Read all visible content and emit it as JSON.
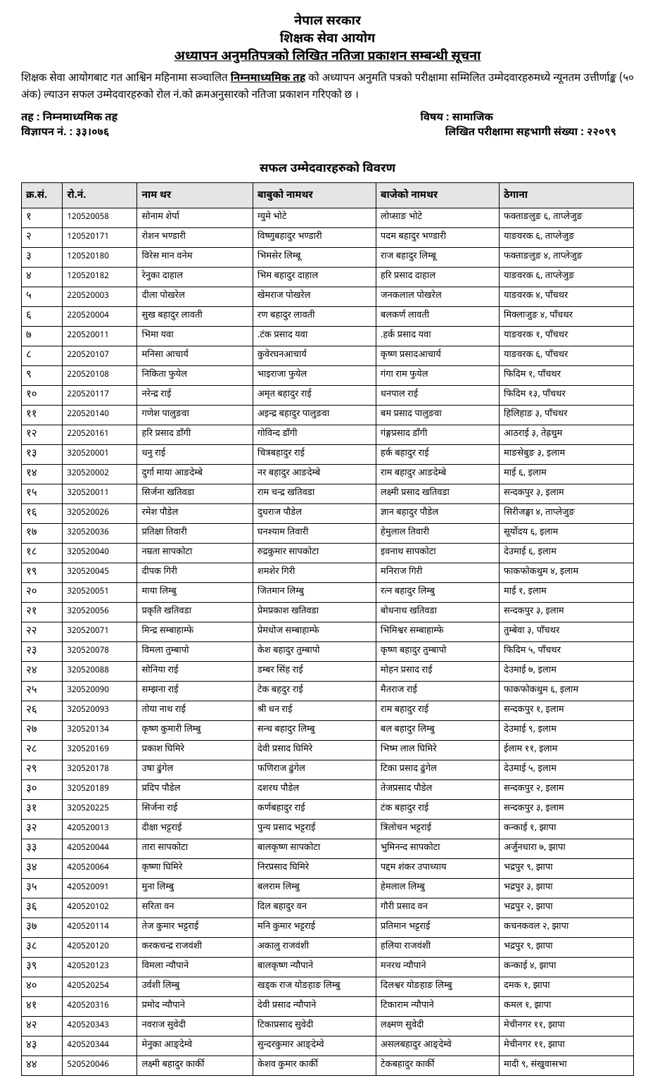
{
  "header": {
    "line1": "नेपाल सरकार",
    "line2": "शिक्षक सेवा आयोग",
    "line3": "अध्यापन अनुमतिपत्रको लिखित नतिजा प्रकाशन सम्बन्धी सूचना"
  },
  "intro": {
    "part1": "शिक्षक सेवा आयोगबाट गत आश्विन महिनामा सञ्चालित ",
    "bold_underline": "निम्नमाध्यमिक तह",
    "part2": " को अध्यापन अनुमति पत्रको परीक्षामा सम्मिलित उम्मेदवारहरुमध्ये न्यूनतम उत्तीर्णाङ्क (५० अंक) ल्याउन सफल उम्मेदवारहरुको रोल नं.को क्रमअनुसारको नतिजा प्रकाशन गरिएको छ ।"
  },
  "info": {
    "level_label": "तह :",
    "level_value": "निम्नमाध्यमिक तह",
    "subject_label": "विषय :",
    "subject_value": "सामाजिक",
    "ad_label": "विज्ञापन नं. :",
    "ad_value": "३३।०७६",
    "participants_label": "लिखित परीक्षामा सहभागी संख्या :",
    "participants_value": "२२०९९"
  },
  "table_title": "सफल उम्मेदवारहरुको विवरण",
  "columns": [
    "क्र.सं.",
    "रो.नं.",
    "नाम थर",
    "बाबुको नामथर",
    "बाजेको नामथर",
    "ठेगाना"
  ],
  "rows": [
    {
      "sn": "१",
      "roll": "120520058",
      "name": "सोनाम शेर्पा",
      "father": "ग्युमे भोटे",
      "gfather": "लोप्साङ भोटे",
      "addr": "फक्ताङलुङ ६, ताप्लेजुङ"
    },
    {
      "sn": "२",
      "roll": "120520171",
      "name": "रोशन भण्डारी",
      "father": "विष्णुबहादुर भण्डारी",
      "gfather": "पदम बहादुर भण्डारी",
      "addr": "याङवरक ६, ताप्लेजुङ"
    },
    {
      "sn": "३",
      "roll": "120520180",
      "name": "विरेस मान वनेम",
      "father": "भिमसेर लिम्बू",
      "gfather": "राज बहादुर लिम्बू",
      "addr": "फक्ताङलुङ ४, ताप्लेजुङ"
    },
    {
      "sn": "४",
      "roll": "120520182",
      "name": "रेनुका दाहाल",
      "father": "भिम बहादुर दाहाल",
      "gfather": "हरि प्रसाद दाहाल",
      "addr": "याङवरक ६, ताप्लेजुङ"
    },
    {
      "sn": "५",
      "roll": "220520003",
      "name": "दीला पोखरेल",
      "father": "खेमराज पोखरेल",
      "gfather": "जनकलाल पोखरेल",
      "addr": "याङवरक ४, पाँचथर"
    },
    {
      "sn": "६",
      "roll": "220520004",
      "name": "सुख बहादुर लावती",
      "father": "रण बहादुर लावती",
      "gfather": "बलकर्ण लावती",
      "addr": "मिक्लाजुङ ४, पाँचथर"
    },
    {
      "sn": "७",
      "roll": "220520011",
      "name": "भिमा यवा",
      "father": ".टंक प्रसाद यवा",
      "gfather": ".हर्क प्रसाद यवा",
      "addr": "याङवरक १, पाँचथर"
    },
    {
      "sn": "८",
      "roll": "220520107",
      "name": "मनिसा आचार्य",
      "father": "कुवेरघनआचार्य",
      "gfather": "कृष्ण प्रसादआचार्य",
      "addr": "याङवरक ६, पाँचथर"
    },
    {
      "sn": "९",
      "roll": "220520108",
      "name": "निकिता फुयेल",
      "father": "भाइराजा फुयेल",
      "gfather": "गंगा राम फुयेल",
      "addr": "फिदिम १, पाँचथर"
    },
    {
      "sn": "१०",
      "roll": "220520117",
      "name": "नरेन्द्र राई",
      "father": "अमृत बहादुर राई",
      "gfather": "धनपाल राई",
      "addr": "फिदिम १३, पाँचथर"
    },
    {
      "sn": "११",
      "roll": "220520140",
      "name": "गणेश पालुङवा",
      "father": "अइन्द्र बहादुर पालुङवा",
      "gfather": "बम प्रसाद पालुङवा",
      "addr": "हिलिहाङ ३, पाँचथर"
    },
    {
      "sn": "१२",
      "roll": "220520161",
      "name": "हरि प्रसाद डाँगी",
      "father": "गोविन्द डाँगी",
      "gfather": "गंङ्गप्रसाद डाँगी",
      "addr": "आठराई ३, तेह्रथुम"
    },
    {
      "sn": "१३",
      "roll": "320520001",
      "name": "धनु राई",
      "father": "चित्रबहादुर राई",
      "gfather": "हर्क बहादुर राई",
      "addr": "माङसेबुङ ३, इलाम"
    },
    {
      "sn": "१४",
      "roll": "320520002",
      "name": "दुर्गा माया आङदेम्बे",
      "father": "नर बहादुर आङदेम्बे",
      "gfather": "राम बहादुर आङदेम्बे",
      "addr": "माई ६, इलाम"
    },
    {
      "sn": "१५",
      "roll": "320520011",
      "name": "सिर्जना खतिवडा",
      "father": "राम चन्द्र खतिवडा",
      "gfather": "लक्ष्मी प्रसाद खतिवडा",
      "addr": "सन्दकपुर ३, इलाम"
    },
    {
      "sn": "१६",
      "roll": "320520026",
      "name": "रमेश पौडेल",
      "father": "दुधराज पौडेल",
      "gfather": "ज्ञान बहादुर पौडेल",
      "addr": "सिरीजङ्घा ४, ताप्लेजुङ"
    },
    {
      "sn": "१७",
      "roll": "320520036",
      "name": "प्रतिक्षा तिवारी",
      "father": "घनश्याम तिवारी",
      "gfather": "हेमुलाल तिवारी",
      "addr": "सूर्योदय ६, इलाम"
    },
    {
      "sn": "१८",
      "roll": "320520040",
      "name": "नम्रता सापकोटा",
      "father": "रुद्रकुमार सापकोटा",
      "gfather": "इवनाथ सापकोटा",
      "addr": "देउमाई ६, इलाम"
    },
    {
      "sn": "१९",
      "roll": "320520045",
      "name": "दीपक गिरी",
      "father": "शमशेर गिरी",
      "gfather": "मनिराज गिरी",
      "addr": "फाकफोकथुम ४, इलाम"
    },
    {
      "sn": "२०",
      "roll": "320520051",
      "name": "माया लिम्बु",
      "father": "जितमान लिम्बु",
      "gfather": "रत्न बहादुर लिम्बु",
      "addr": "माई १, इलाम"
    },
    {
      "sn": "२१",
      "roll": "320520056",
      "name": "प्रकृति खतिवडा",
      "father": "प्रेमप्रकाश खतिवडा",
      "gfather": "बोधनाथ खतिवडा",
      "addr": "सन्दकपुर ३, इलाम"
    },
    {
      "sn": "२२",
      "roll": "320520071",
      "name": "मिन्द्र सम्बाहाम्फे",
      "father": "प्रेमधोज सम्बाहाम्फे",
      "gfather": "भिमिश्वर सम्बाहाम्फे",
      "addr": "तुम्बेवा ३, पाँचथर"
    },
    {
      "sn": "२३",
      "roll": "320520078",
      "name": "विमला तुम्बापो",
      "father": "केश बहादुर तुम्बापो",
      "gfather": "कृष्ण बहादुर तुम्बापो",
      "addr": "फिदिम ५, पाँचथर"
    },
    {
      "sn": "२४",
      "roll": "320520088",
      "name": "सोनिया राई",
      "father": "डम्बर सिंह राई",
      "gfather": "मोहन प्रसाद राई",
      "addr": "देउमाई ७, इलाम"
    },
    {
      "sn": "२५",
      "roll": "320520090",
      "name": "सम्झना राई",
      "father": "टेक बहदुर राई",
      "gfather": "मैतराज राई",
      "addr": "फाकफोकथुम ६, इलाम"
    },
    {
      "sn": "२६",
      "roll": "320520093",
      "name": "तोया नाथ राई",
      "father": "श्री धन राई",
      "gfather": "राम बहादुर राई",
      "addr": "सन्दकपुर १, इलाम"
    },
    {
      "sn": "२७",
      "roll": "320520134",
      "name": "कृष्ण कुमारी लिम्बु",
      "father": "सन्च बहादुर लिम्बु",
      "gfather": "बल बहादुर लिम्बु",
      "addr": "देउमाई ९, इलाम"
    },
    {
      "sn": "२८",
      "roll": "320520169",
      "name": "प्रकाश घिमिरे",
      "father": "देवी प्रसाद घिमिरे",
      "gfather": "भिष्म लाल घिमिरे",
      "addr": "ईलाम ११, इलाम"
    },
    {
      "sn": "२९",
      "roll": "320520178",
      "name": "उषा ढुंगेल",
      "father": "फणिराज ढुंगेल",
      "gfather": "टिका प्रसाद ढुंगेल",
      "addr": "देउमाई ५, इलाम"
    },
    {
      "sn": "३०",
      "roll": "320520189",
      "name": "प्रदिप पौडेल",
      "father": "दशरथ पौडेल",
      "gfather": "तेजप्रसाद पौडेल",
      "addr": "सन्दकपुर २, इलाम"
    },
    {
      "sn": "३१",
      "roll": "320520225",
      "name": "सिर्जना राई",
      "father": "कर्णबहादुर राई",
      "gfather": "टंक बहादुर राई",
      "addr": "सन्दकपुर ३, इलाम"
    },
    {
      "sn": "३२",
      "roll": "420520013",
      "name": "दीक्षा भट्टराई",
      "father": "पुन्य प्रसाद भट्टराई",
      "gfather": "त्रिलोचन भट्टराई",
      "addr": "कन्काई १, झापा"
    },
    {
      "sn": "३३",
      "roll": "420520044",
      "name": "तारा सापकोटा",
      "father": "बालकृष्ण सापकोटा",
      "gfather": "भुमिनन्द सापकोटा",
      "addr": "अर्जुनधारा ७, झापा"
    },
    {
      "sn": "३४",
      "roll": "420520064",
      "name": "कृष्णा घिमिरे",
      "father": "निरप्रसाद घिमिरे",
      "gfather": "पद्दम शंकर उपाध्याय",
      "addr": "भद्रपुर ९, झापा"
    },
    {
      "sn": "३५",
      "roll": "420520091",
      "name": "मुना लिम्बु",
      "father": "बलराम लिम्बु",
      "gfather": "हेमलाल लिम्बु",
      "addr": "भद्रपुर ३, झापा"
    },
    {
      "sn": "३६",
      "roll": "420520102",
      "name": "सरिता वन",
      "father": "दिल बहादुर वन",
      "gfather": "गौरी प्रसाद वन",
      "addr": "भद्रपुर २, झापा"
    },
    {
      "sn": "३७",
      "roll": "420520114",
      "name": "तेज कुमार भट्टराई",
      "father": "मनि कुमार भट्टराई",
      "gfather": "प्रतिमान भट्टराई",
      "addr": "कचनकवल २, झापा"
    },
    {
      "sn": "३८",
      "roll": "420520120",
      "name": "करकचन्द्र राजवंशी",
      "father": "अकालु राजवंशी",
      "gfather": "हलिया राजवंशी",
      "addr": "भद्रपुर ९, झापा"
    },
    {
      "sn": "३९",
      "roll": "420520123",
      "name": "विमला न्यौपाने",
      "father": "बालकृष्ण न्यौपाने",
      "gfather": "मनरथ न्यौपाने",
      "addr": "कन्काई ४, झापा"
    },
    {
      "sn": "४०",
      "roll": "420520254",
      "name": "उर्वशी लिम्बु",
      "father": "खड्क राज योङहाङ लिम्बु",
      "gfather": "दिलश्वर योङहाङ लिम्बु",
      "addr": "दमक १, झापा"
    },
    {
      "sn": "४१",
      "roll": "420520316",
      "name": "प्रमोद न्यौपाने",
      "father": "देवी प्रसाद न्यौपाने",
      "gfather": "टिकाराम न्यौपाने",
      "addr": "कमल १, झापा"
    },
    {
      "sn": "४२",
      "roll": "420520343",
      "name": "नवराज सुवेदी",
      "father": "टिकाप्रसाद सुवेदी",
      "gfather": "लक्ष्मण सुवेदी",
      "addr": "मेचीनगर ११, झापा"
    },
    {
      "sn": "४३",
      "roll": "420520344",
      "name": "मेनुका आङ्देम्वे",
      "father": "सुन्दरकुमार आङ्देम्वे",
      "gfather": "असलबहादुर आङ्देम्वे",
      "addr": "मेचीनगर ११, झापा"
    },
    {
      "sn": "४४",
      "roll": "520520046",
      "name": "लक्ष्मी बहादुर कार्की",
      "father": "केशव कुमार कार्की",
      "gfather": "टेकबहादुर कार्की",
      "addr": "मादी ९, संखुवासभा"
    }
  ],
  "colors": {
    "header_bg": "#e5e5e5",
    "border": "#000000",
    "text": "#000000",
    "background": "#ffffff"
  }
}
